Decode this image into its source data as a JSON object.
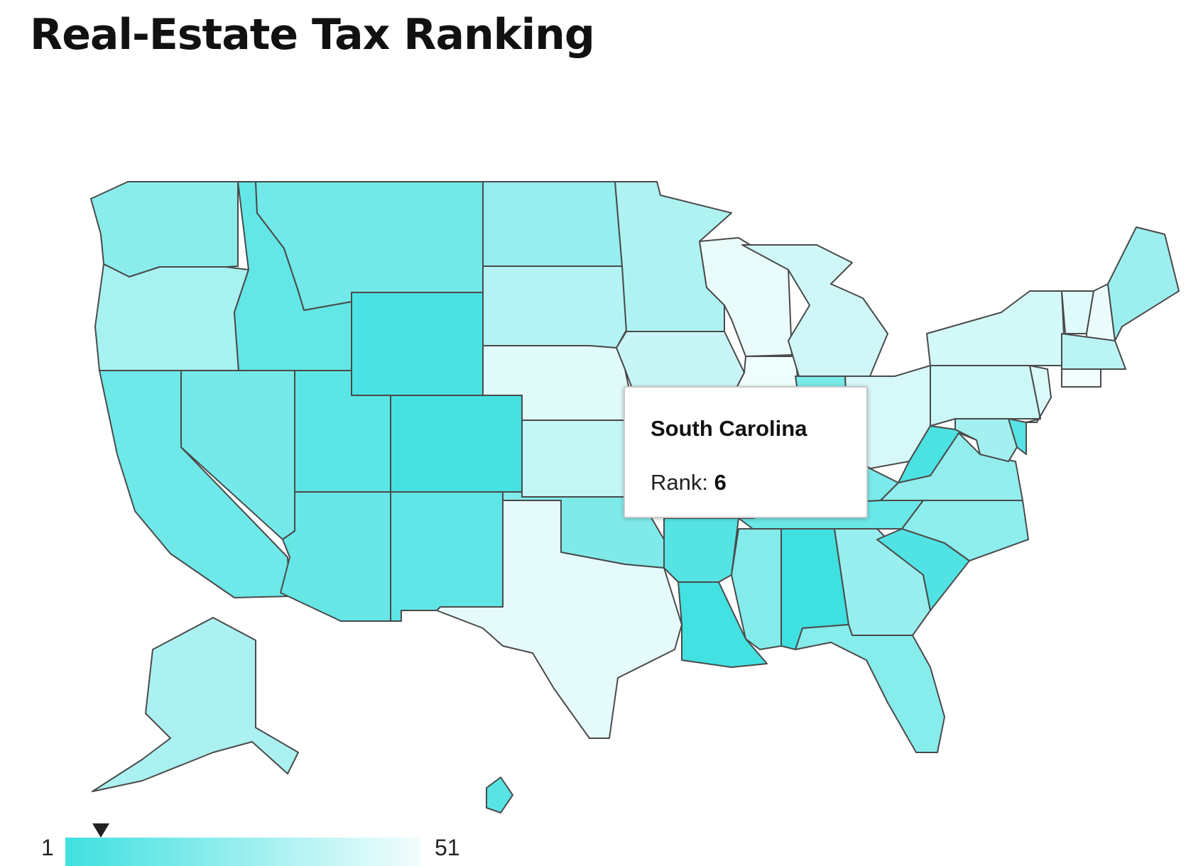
{
  "title": "Real-Estate Tax Ranking",
  "map": {
    "color_low_rank": "#3fe0e0",
    "color_high_rank": "#ffffff",
    "rank_min": 1,
    "rank_max": 51,
    "states": [
      {
        "id": "WA",
        "rank": 22
      },
      {
        "id": "OR",
        "rank": 30
      },
      {
        "id": "CA",
        "rank": 14
      },
      {
        "id": "NV",
        "rank": 16
      },
      {
        "id": "ID",
        "rank": 11
      },
      {
        "id": "MT",
        "rank": 15
      },
      {
        "id": "WY",
        "rank": 4
      },
      {
        "id": "UT",
        "rank": 9
      },
      {
        "id": "AZ",
        "rank": 12
      },
      {
        "id": "CO",
        "rank": 3
      },
      {
        "id": "NM",
        "rank": 10
      },
      {
        "id": "ND",
        "rank": 25
      },
      {
        "id": "SD",
        "rank": 33
      },
      {
        "id": "NE",
        "rank": 46
      },
      {
        "id": "KS",
        "rank": 38
      },
      {
        "id": "OK",
        "rank": 19
      },
      {
        "id": "TX",
        "rank": 47
      },
      {
        "id": "MN",
        "rank": 32
      },
      {
        "id": "IA",
        "rank": 39
      },
      {
        "id": "MO",
        "rank": 28
      },
      {
        "id": "AR",
        "rank": 7
      },
      {
        "id": "LA",
        "rank": 2
      },
      {
        "id": "WI",
        "rank": 48
      },
      {
        "id": "IL",
        "rank": 50
      },
      {
        "id": "MI",
        "rank": 41
      },
      {
        "id": "IN",
        "rank": 17
      },
      {
        "id": "OH",
        "rank": 43
      },
      {
        "id": "KY",
        "rank": 18
      },
      {
        "id": "TN",
        "rank": 13
      },
      {
        "id": "MS",
        "rank": 20
      },
      {
        "id": "AL",
        "rank": 1
      },
      {
        "id": "GA",
        "rank": 26
      },
      {
        "id": "FL",
        "rank": 21
      },
      {
        "id": "SC",
        "rank": 6
      },
      {
        "id": "NC",
        "rank": 23
      },
      {
        "id": "VA",
        "rank": 24
      },
      {
        "id": "WV",
        "rank": 5
      },
      {
        "id": "PA",
        "rank": 40
      },
      {
        "id": "NY",
        "rank": 42
      },
      {
        "id": "VT",
        "rank": 45
      },
      {
        "id": "NH",
        "rank": 49
      },
      {
        "id": "ME",
        "rank": 27
      },
      {
        "id": "MA",
        "rank": 35
      },
      {
        "id": "CT",
        "rank": 51
      },
      {
        "id": "NJ",
        "rank": 44
      },
      {
        "id": "DE",
        "rank": 8
      },
      {
        "id": "MD",
        "rank": 29
      },
      {
        "id": "AK",
        "rank": 31
      },
      {
        "id": "HI",
        "rank": 8
      }
    ]
  },
  "tooltip": {
    "state_name": "South Carolina",
    "rank_label": "Rank:",
    "rank_value": "6"
  },
  "legend": {
    "min_label": "1",
    "max_label": "51",
    "marker_rank": 6
  }
}
